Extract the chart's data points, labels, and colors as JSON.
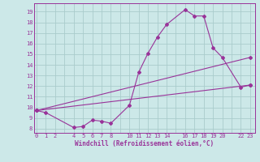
{
  "xlabel": "Windchill (Refroidissement éolien,°C)",
  "bg_color": "#cce8e8",
  "grid_color": "#aacccc",
  "line_color": "#993399",
  "xtick_positions": [
    0,
    1,
    2,
    3,
    4,
    5,
    6,
    7,
    8,
    9,
    10,
    11,
    12,
    13,
    14,
    15,
    16,
    17,
    18,
    19,
    20,
    21,
    22,
    23
  ],
  "xtick_labels": [
    "0",
    "1",
    "2",
    "",
    "4",
    "5",
    "6",
    "7",
    "8",
    "",
    "10",
    "11",
    "12",
    "13",
    "14",
    "",
    "16",
    "17",
    "18",
    "19",
    "20",
    "",
    "22",
    "23"
  ],
  "ytick_positions": [
    8,
    9,
    10,
    11,
    12,
    13,
    14,
    15,
    16,
    17,
    18,
    19
  ],
  "ytick_labels": [
    "8",
    "9",
    "10",
    "11",
    "12",
    "13",
    "14",
    "15",
    "16",
    "17",
    "18",
    "19"
  ],
  "xlim": [
    -0.3,
    23.5
  ],
  "ylim": [
    7.6,
    19.8
  ],
  "line1_x": [
    0,
    1,
    4,
    5,
    6,
    7,
    8,
    10,
    11,
    12,
    13,
    14,
    16,
    17,
    18,
    19,
    20,
    22,
    23
  ],
  "line1_y": [
    9.7,
    9.5,
    8.1,
    8.2,
    8.8,
    8.7,
    8.5,
    10.2,
    13.3,
    15.1,
    16.6,
    17.8,
    19.2,
    18.6,
    18.6,
    15.6,
    14.7,
    11.9,
    12.1
  ],
  "line2_x": [
    0,
    23
  ],
  "line2_y": [
    9.7,
    12.1
  ],
  "line3_x": [
    0,
    23
  ],
  "line3_y": [
    9.7,
    14.7
  ],
  "lw": 0.8,
  "ms": 2.0,
  "tick_fontsize": 5.0,
  "xlabel_fontsize": 5.5
}
